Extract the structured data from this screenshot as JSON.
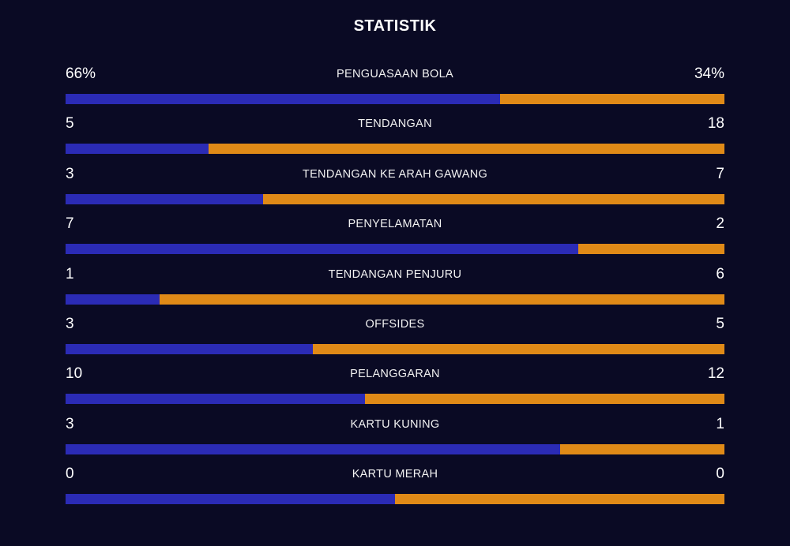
{
  "title": "STATISTIK",
  "colors": {
    "background": "#0a0a24",
    "home_bar": "#2b2bb5",
    "away_bar": "#e08a17",
    "text": "#ffffff"
  },
  "stats": [
    {
      "label": "PENGUASAAN BOLA",
      "home": "66%",
      "away": "34%",
      "home_share": 0.66
    },
    {
      "label": "TENDANGAN",
      "home": "5",
      "away": "18",
      "home_share": 0.217
    },
    {
      "label": "TENDANGAN KE ARAH GAWANG",
      "home": "3",
      "away": "7",
      "home_share": 0.3
    },
    {
      "label": "PENYELAMATAN",
      "home": "7",
      "away": "2",
      "home_share": 0.778
    },
    {
      "label": "TENDANGAN PENJURU",
      "home": "1",
      "away": "6",
      "home_share": 0.143
    },
    {
      "label": "OFFSIDES",
      "home": "3",
      "away": "5",
      "home_share": 0.375
    },
    {
      "label": "PELANGGARAN",
      "home": "10",
      "away": "12",
      "home_share": 0.455
    },
    {
      "label": "KARTU KUNING",
      "home": "3",
      "away": "1",
      "home_share": 0.75
    },
    {
      "label": "KARTU MERAH",
      "home": "0",
      "away": "0",
      "home_share": 0.5
    }
  ]
}
